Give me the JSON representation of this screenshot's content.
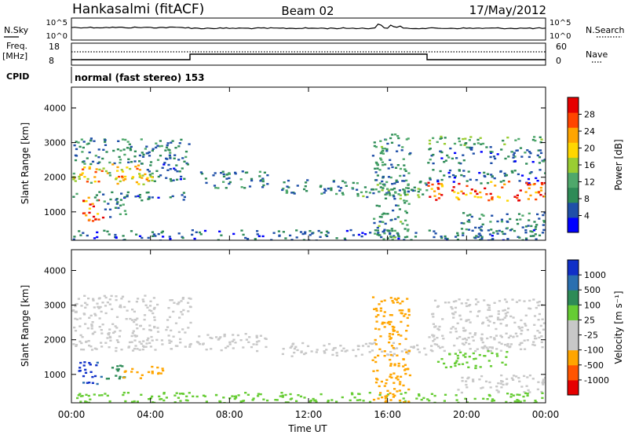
{
  "header": {
    "station": "Hankasalmi (fitACF)",
    "beam": "Beam 02",
    "date": "17/May/2012"
  },
  "summary_panels": {
    "nsky_label": "N.Sky",
    "nsearch_label": "N.Search",
    "noise_ticks": [
      "10^5",
      "10^0"
    ],
    "freq_label": "Freq.",
    "freq_unit": "[MHz]",
    "freq_ticks": [
      "18",
      "8"
    ],
    "nave_label": "Nave",
    "nave_ticks": [
      "60",
      "0"
    ],
    "cpid_label": "CPID",
    "cpid_value": "normal (fast stereo) 153"
  },
  "colors": {
    "power_scale": [
      "#0000ff",
      "#1f4fa8",
      "#2e8b57",
      "#4fa86b",
      "#9acd32",
      "#ffd700",
      "#ffa500",
      "#ff4500",
      "#e60000"
    ],
    "velocity_scale": [
      "#1030c8",
      "#2a6fb0",
      "#2e8b57",
      "#66cc33",
      "#c8c8c8",
      "#c8c8c8",
      "#ffa500",
      "#ff5500",
      "#e60000"
    ]
  },
  "chart_data": [
    {
      "type": "heatmap",
      "name": "power",
      "ylabel": "Slant Range [km]",
      "ylim": [
        180,
        4600
      ],
      "yticks": [
        "4000",
        "3000",
        "2000",
        "1000"
      ],
      "ytick_values": [
        4000,
        3000,
        2000,
        1000
      ],
      "xlim": [
        0,
        24
      ],
      "colorbar": {
        "label": "Power [dB]",
        "ticks": [
          "28",
          "24",
          "20",
          "16",
          "12",
          "8",
          "4"
        ],
        "tick_values": [
          28,
          24,
          20,
          16,
          12,
          8,
          4
        ],
        "range": [
          0,
          32
        ]
      },
      "bands": [
        {
          "t": [
            0,
            6
          ],
          "r": [
            2400,
            3150
          ],
          "v": 8
        },
        {
          "t": [
            0,
            3.8
          ],
          "r": [
            1950,
            2400
          ],
          "v": 20
        },
        {
          "t": [
            3.8,
            6
          ],
          "r": [
            1900,
            2550
          ],
          "v": 7
        },
        {
          "t": [
            0,
            4.5
          ],
          "r": [
            1800,
            2050
          ],
          "v": 20
        },
        {
          "t": [
            0.3,
            1.6
          ],
          "r": [
            750,
            1450
          ],
          "v": 28
        },
        {
          "t": [
            1.6,
            2.7
          ],
          "r": [
            850,
            1350
          ],
          "v": 9
        },
        {
          "t": [
            0,
            6
          ],
          "r": [
            1350,
            1600
          ],
          "v": 7
        },
        {
          "t": [
            6.3,
            10
          ],
          "r": [
            1700,
            2200
          ],
          "v": 8
        },
        {
          "t": [
            10.6,
            18
          ],
          "r": [
            1550,
            1950
          ],
          "v": 8
        },
        {
          "t": [
            13,
            18
          ],
          "r": [
            1450,
            1750
          ],
          "v": 12
        },
        {
          "t": [
            18,
            24
          ],
          "r": [
            2950,
            3200
          ],
          "v": 12
        },
        {
          "t": [
            18,
            24
          ],
          "r": [
            2400,
            2900
          ],
          "v": 7
        },
        {
          "t": [
            18,
            24
          ],
          "r": [
            1850,
            2250
          ],
          "v": 6
        },
        {
          "t": [
            18,
            24
          ],
          "r": [
            1350,
            1900
          ],
          "v": 26
        },
        {
          "t": [
            19.5,
            24
          ],
          "r": [
            500,
            1000
          ],
          "v": 8
        },
        {
          "t": [
            0,
            24
          ],
          "r": [
            200,
            500
          ],
          "v": 6
        },
        {
          "t": [
            15.2,
            17.1
          ],
          "r": [
            200,
            3300
          ],
          "v": 10
        }
      ]
    },
    {
      "type": "heatmap",
      "name": "velocity",
      "ylabel": "Slant Range [km]",
      "ylim": [
        180,
        4600
      ],
      "yticks": [
        "4000",
        "3000",
        "2000",
        "1000"
      ],
      "ytick_values": [
        4000,
        3000,
        2000,
        1000
      ],
      "xlim": [
        0,
        24
      ],
      "colorbar": {
        "label": "Velocity [m s⁻¹]",
        "ticks": [
          "1000",
          "500",
          "100",
          "25",
          "-25",
          "-100",
          "-500",
          "-1000"
        ],
        "tick_values": [
          1000,
          500,
          100,
          25,
          -25,
          -100,
          -500,
          -1000
        ]
      },
      "bands": [
        {
          "t": [
            0,
            6
          ],
          "r": [
            1700,
            3300
          ],
          "v": 0
        },
        {
          "t": [
            0.3,
            1.6
          ],
          "r": [
            750,
            1450
          ],
          "v": 800
        },
        {
          "t": [
            1.6,
            2.7
          ],
          "r": [
            850,
            1350
          ],
          "v": 200
        },
        {
          "t": [
            2.5,
            4.6
          ],
          "r": [
            900,
            1250
          ],
          "v": -150
        },
        {
          "t": [
            6.3,
            10
          ],
          "r": [
            1700,
            2200
          ],
          "v": 0
        },
        {
          "t": [
            10.6,
            18
          ],
          "r": [
            1550,
            1950
          ],
          "v": 0
        },
        {
          "t": [
            18,
            24
          ],
          "r": [
            1700,
            3200
          ],
          "v": 0
        },
        {
          "t": [
            18.5,
            22
          ],
          "r": [
            1200,
            1700
          ],
          "v": 80
        },
        {
          "t": [
            19.5,
            24
          ],
          "r": [
            500,
            1000
          ],
          "v": 0
        },
        {
          "t": [
            0,
            24
          ],
          "r": [
            200,
            500
          ],
          "v": 60
        },
        {
          "t": [
            15.2,
            17.1
          ],
          "r": [
            200,
            3300
          ],
          "v": -200
        }
      ]
    }
  ],
  "xaxis": {
    "ticks": [
      "00:00",
      "04:00",
      "08:00",
      "12:00",
      "16:00",
      "20:00",
      "00:00"
    ],
    "tick_values": [
      0,
      4,
      8,
      12,
      16,
      20,
      24
    ],
    "label": "Time UT"
  }
}
